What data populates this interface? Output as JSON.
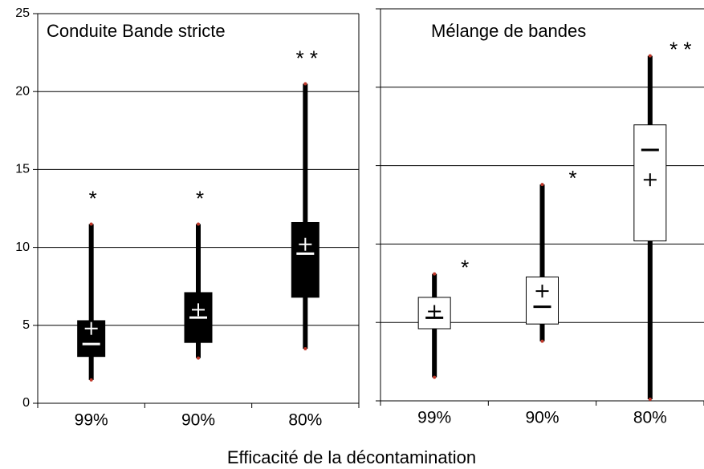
{
  "xlabel": "Efficacité de la décontamination",
  "chart_data": [
    {
      "type": "box",
      "title": "Conduite Bande stricte",
      "categories": [
        "99%",
        "90%",
        "80%"
      ],
      "min": [
        1.5,
        2.9,
        3.5
      ],
      "q1": [
        3.0,
        3.9,
        6.8
      ],
      "median": [
        3.8,
        5.5,
        9.6
      ],
      "mean": [
        4.8,
        6.0,
        10.2
      ],
      "q3": [
        5.3,
        7.1,
        11.6
      ],
      "max": [
        11.5,
        11.5,
        20.5
      ],
      "annotations": [
        "*",
        "*",
        "* *"
      ],
      "box_color": "#000000",
      "marker_color": "#ffffff",
      "ylim": [
        0,
        25
      ],
      "yticks": [
        0,
        5,
        10,
        15,
        20,
        25
      ],
      "show_ytick_labels": true,
      "grid": true
    },
    {
      "type": "box",
      "title": "Mélange de bandes",
      "categories": [
        "99%",
        "90%",
        "80%"
      ],
      "min": [
        1.5,
        3.8,
        0.1
      ],
      "q1": [
        4.6,
        4.9,
        10.2
      ],
      "median": [
        5.3,
        6.0,
        16.0
      ],
      "mean": [
        5.7,
        7.0,
        14.1
      ],
      "q3": [
        6.6,
        7.9,
        17.6
      ],
      "max": [
        8.1,
        13.8,
        22.0
      ],
      "annotations": [
        "*",
        "*",
        "* *"
      ],
      "box_color": "#ffffff",
      "marker_color": "#000000",
      "ylim": [
        0,
        25
      ],
      "yticks": [
        0,
        5,
        10,
        15,
        20,
        25
      ],
      "show_ytick_labels": false,
      "grid": true
    }
  ]
}
